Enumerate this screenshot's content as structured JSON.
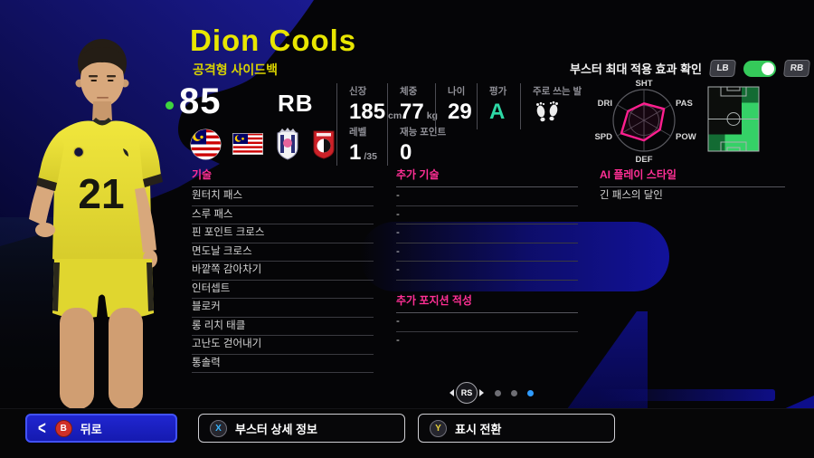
{
  "player": {
    "name": "Dion Cools",
    "role": "공격형 사이드백",
    "rating": "85",
    "position": "RB",
    "jersey_number": "21",
    "condition_dot_color": "#3ed43e",
    "badges": [
      "malaysia-round-flag",
      "malaysia-flag",
      "cerezo-osaka-crest",
      "jleague-club-crest"
    ]
  },
  "stats": {
    "height_label": "신장",
    "height_value": "185",
    "height_unit": "cm",
    "weight_label": "체중",
    "weight_value": "77",
    "weight_unit": "kg",
    "age_label": "나이",
    "age_value": "29",
    "grade_label": "평가",
    "grade_value": "A",
    "foot_label": "주로 쓰는 발",
    "level_label": "레벨",
    "level_value": "1",
    "level_max": "/35",
    "talent_label": "재능 포인트",
    "talent_value": "0"
  },
  "booster": {
    "label": "부스터 최대 적용 효과 확인",
    "lb": "LB",
    "rb": "RB",
    "toggle_on": true
  },
  "chart_data": {
    "type": "radar",
    "labels": [
      "SHT",
      "PAS",
      "POW",
      "DEF",
      "SPD",
      "DRI"
    ],
    "values": [
      55,
      75,
      60,
      65,
      85,
      60
    ],
    "max": 100,
    "line_color": "#ff1f8f",
    "grid_color": "#5a5a60"
  },
  "pitch_map": {
    "bright_zones": [
      "right-mid-upper",
      "right-mid-lower",
      "right-bottom",
      "center-bottom"
    ],
    "dim_zones": [
      "right-top",
      "left-bottom"
    ],
    "bright_color": "#35d167",
    "dim_color": "#136b33"
  },
  "columns": {
    "skills": {
      "header": "기술",
      "items": [
        "원터치 패스",
        "스루 패스",
        "핀 포인트 크로스",
        "면도날 크로스",
        "바깥쪽 감아차기",
        "인터셉트",
        "블로커",
        "롱 리치 태클",
        "고난도 걷어내기",
        "통솔력"
      ]
    },
    "extra_skills": {
      "header": "추가 기술",
      "items": [
        "-",
        "-",
        "-",
        "-",
        "-"
      ]
    },
    "extra_positions": {
      "header": "추가 포지션 적성",
      "items": [
        "-",
        "-"
      ]
    },
    "ai_style": {
      "header": "AI 플레이 스타일",
      "items": [
        "긴 패스의 달인"
      ]
    }
  },
  "pagination": {
    "stick": "RS",
    "dots": 3,
    "active_index": 2,
    "active_color": "#2f9bff"
  },
  "bottom_bar": {
    "back": {
      "key": "B",
      "label": "뒤로"
    },
    "booster_detail": {
      "key": "X",
      "label": "부스터 상세 정보"
    },
    "toggle_view": {
      "key": "Y",
      "label": "표시 전환"
    }
  },
  "colors": {
    "name_yellow": "#e8e600",
    "header_magenta": "#ff2f95",
    "grade_green": "#2ed9a6",
    "toggle_green": "#35c95a",
    "selected_button_blue": "#1a20c4",
    "background_navy": "#10108c"
  }
}
